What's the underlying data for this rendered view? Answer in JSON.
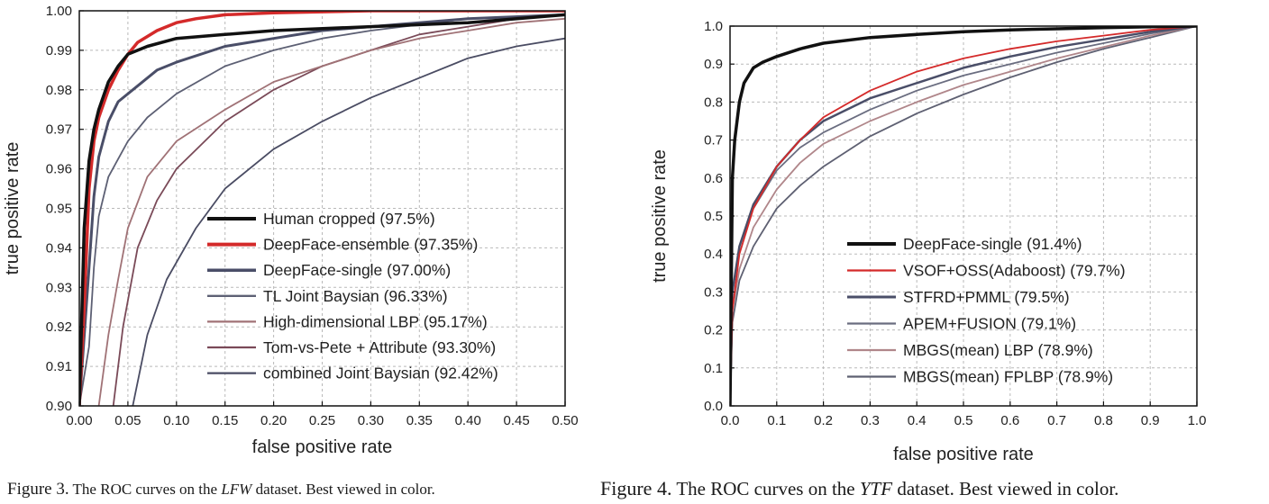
{
  "chart_data": [
    {
      "type": "line",
      "xlabel": "false positive rate",
      "ylabel": "true positive rate",
      "xlim": [
        0,
        0.5
      ],
      "ylim": [
        0.9,
        1.0
      ],
      "xticks": [
        "0.00",
        "0.05",
        "0.10",
        "0.15",
        "0.20",
        "0.25",
        "0.30",
        "0.35",
        "0.40",
        "0.45",
        "0.50"
      ],
      "yticks": [
        "0.90",
        "0.91",
        "0.92",
        "0.93",
        "0.94",
        "0.95",
        "0.96",
        "0.97",
        "0.98",
        "0.99",
        "1.00"
      ],
      "grid": true,
      "legend_position": "bottom-right",
      "series": [
        {
          "name": "Human cropped (97.5%)",
          "color": "#111111",
          "x": [
            0.0,
            0.005,
            0.01,
            0.015,
            0.02,
            0.03,
            0.04,
            0.05,
            0.07,
            0.1,
            0.15,
            0.2,
            0.3,
            0.4,
            0.5
          ],
          "y": [
            0.9,
            0.945,
            0.962,
            0.97,
            0.975,
            0.982,
            0.986,
            0.989,
            0.991,
            0.993,
            0.994,
            0.995,
            0.996,
            0.997,
            0.999
          ]
        },
        {
          "name": "DeepFace-ensemble (97.35%)",
          "color": "#d42a2a",
          "x": [
            0.0,
            0.005,
            0.01,
            0.015,
            0.02,
            0.03,
            0.04,
            0.05,
            0.06,
            0.08,
            0.1,
            0.12,
            0.15,
            0.2,
            0.3,
            0.5
          ],
          "y": [
            0.9,
            0.925,
            0.955,
            0.967,
            0.973,
            0.98,
            0.985,
            0.989,
            0.992,
            0.995,
            0.997,
            0.998,
            0.999,
            0.9995,
            1.0,
            1.0
          ]
        },
        {
          "name": "DeepFace-single (97.00%)",
          "color": "#4a4e68",
          "x": [
            0.0,
            0.01,
            0.015,
            0.02,
            0.03,
            0.04,
            0.06,
            0.08,
            0.1,
            0.15,
            0.2,
            0.25,
            0.3,
            0.4,
            0.5
          ],
          "y": [
            0.9,
            0.935,
            0.953,
            0.963,
            0.972,
            0.977,
            0.981,
            0.985,
            0.987,
            0.991,
            0.993,
            0.995,
            0.996,
            0.998,
            0.999
          ]
        },
        {
          "name": "TL Joint Baysian (96.33%)",
          "color": "#5d6074",
          "x": [
            0.0,
            0.01,
            0.015,
            0.02,
            0.03,
            0.05,
            0.07,
            0.1,
            0.15,
            0.2,
            0.25,
            0.3,
            0.4,
            0.5
          ],
          "y": [
            0.9,
            0.915,
            0.935,
            0.948,
            0.958,
            0.967,
            0.973,
            0.979,
            0.986,
            0.99,
            0.993,
            0.995,
            0.998,
            0.999
          ]
        },
        {
          "name": "High-dimensional LBP (95.17%)",
          "color": "#a07276",
          "x": [
            0.02,
            0.03,
            0.04,
            0.05,
            0.07,
            0.1,
            0.15,
            0.2,
            0.25,
            0.3,
            0.35,
            0.4,
            0.45,
            0.5
          ],
          "y": [
            0.9,
            0.918,
            0.932,
            0.945,
            0.958,
            0.967,
            0.975,
            0.982,
            0.986,
            0.99,
            0.993,
            0.995,
            0.997,
            0.998
          ]
        },
        {
          "name": "Tom-vs-Pete + Attribute (93.30%)",
          "color": "#7a4a58",
          "x": [
            0.035,
            0.045,
            0.06,
            0.08,
            0.1,
            0.15,
            0.2,
            0.25,
            0.3,
            0.35,
            0.4,
            0.45,
            0.5
          ],
          "y": [
            0.9,
            0.92,
            0.94,
            0.952,
            0.96,
            0.972,
            0.98,
            0.986,
            0.99,
            0.994,
            0.996,
            0.998,
            0.999
          ]
        },
        {
          "name": "combined Joint Baysian (92.42%)",
          "color": "#4a4c63",
          "x": [
            0.055,
            0.07,
            0.09,
            0.12,
            0.15,
            0.2,
            0.25,
            0.3,
            0.35,
            0.4,
            0.45,
            0.5
          ],
          "y": [
            0.9,
            0.918,
            0.932,
            0.945,
            0.955,
            0.965,
            0.972,
            0.978,
            0.983,
            0.988,
            0.991,
            0.993
          ]
        }
      ]
    },
    {
      "type": "line",
      "xlabel": "false positive rate",
      "ylabel": "true positive rate",
      "xlim": [
        0,
        1.0
      ],
      "ylim": [
        0,
        1.0
      ],
      "xticks": [
        "0.0",
        "0.1",
        "0.2",
        "0.3",
        "0.4",
        "0.5",
        "0.6",
        "0.7",
        "0.8",
        "0.9",
        "1.0"
      ],
      "yticks": [
        "0.0",
        "0.1",
        "0.2",
        "0.3",
        "0.4",
        "0.5",
        "0.6",
        "0.7",
        "0.8",
        "0.9",
        "1.0"
      ],
      "grid": true,
      "legend_position": "bottom-right",
      "series": [
        {
          "name": "DeepFace-single (91.4%)",
          "color": "#111111",
          "x": [
            0.0,
            0.005,
            0.01,
            0.02,
            0.03,
            0.05,
            0.07,
            0.1,
            0.15,
            0.2,
            0.3,
            0.4,
            0.5,
            0.6,
            0.7,
            0.8,
            0.9,
            1.0
          ],
          "y": [
            0.0,
            0.6,
            0.7,
            0.8,
            0.85,
            0.89,
            0.905,
            0.92,
            0.94,
            0.955,
            0.97,
            0.978,
            0.985,
            0.99,
            0.993,
            0.996,
            0.998,
            1.0
          ]
        },
        {
          "name": "VSOF+OSS(Adaboost) (79.7%)",
          "color": "#d42a2a",
          "x": [
            0.0,
            0.005,
            0.02,
            0.05,
            0.1,
            0.15,
            0.2,
            0.3,
            0.4,
            0.5,
            0.6,
            0.7,
            0.8,
            0.9,
            1.0
          ],
          "y": [
            0.0,
            0.25,
            0.4,
            0.52,
            0.63,
            0.7,
            0.76,
            0.83,
            0.88,
            0.915,
            0.94,
            0.96,
            0.975,
            0.99,
            1.0
          ]
        },
        {
          "name": "STFRD+PMML (79.5%)",
          "color": "#4a4e68",
          "x": [
            0.0,
            0.005,
            0.02,
            0.05,
            0.1,
            0.15,
            0.2,
            0.3,
            0.4,
            0.5,
            0.6,
            0.7,
            0.8,
            0.9,
            1.0
          ],
          "y": [
            0.0,
            0.3,
            0.42,
            0.53,
            0.63,
            0.7,
            0.75,
            0.81,
            0.85,
            0.89,
            0.92,
            0.945,
            0.965,
            0.985,
            1.0
          ]
        },
        {
          "name": "APEM+FUSION (79.1%)",
          "color": "#6a6d80",
          "x": [
            0.0,
            0.005,
            0.02,
            0.05,
            0.1,
            0.15,
            0.2,
            0.3,
            0.4,
            0.5,
            0.6,
            0.7,
            0.8,
            0.9,
            1.0
          ],
          "y": [
            0.0,
            0.3,
            0.42,
            0.52,
            0.62,
            0.68,
            0.72,
            0.78,
            0.83,
            0.87,
            0.9,
            0.93,
            0.955,
            0.98,
            1.0
          ]
        },
        {
          "name": "MBGS(mean) LBP (78.9%)",
          "color": "#b0868a",
          "x": [
            0.0,
            0.005,
            0.02,
            0.05,
            0.1,
            0.15,
            0.2,
            0.3,
            0.4,
            0.5,
            0.6,
            0.7,
            0.8,
            0.9,
            1.0
          ],
          "y": [
            0.0,
            0.25,
            0.36,
            0.47,
            0.57,
            0.64,
            0.69,
            0.75,
            0.8,
            0.845,
            0.88,
            0.915,
            0.945,
            0.975,
            1.0
          ]
        },
        {
          "name": "MBGS(mean) FPLBP (78.9%)",
          "color": "#5e6072",
          "x": [
            0.0,
            0.005,
            0.02,
            0.05,
            0.1,
            0.15,
            0.2,
            0.3,
            0.4,
            0.5,
            0.6,
            0.7,
            0.8,
            0.9,
            1.0
          ],
          "y": [
            0.0,
            0.22,
            0.33,
            0.42,
            0.52,
            0.58,
            0.63,
            0.71,
            0.77,
            0.82,
            0.865,
            0.905,
            0.94,
            0.97,
            1.0
          ]
        }
      ]
    }
  ],
  "captions": [
    {
      "label": "Figure 3.",
      "pre": " The ROC curves on the ",
      "dataset": "LFW",
      "post": " dataset. Best viewed in color."
    },
    {
      "label": "Figure 4.",
      "pre": " The ROC curves on the ",
      "dataset": "YTF",
      "post": " dataset. Best viewed in color."
    }
  ]
}
